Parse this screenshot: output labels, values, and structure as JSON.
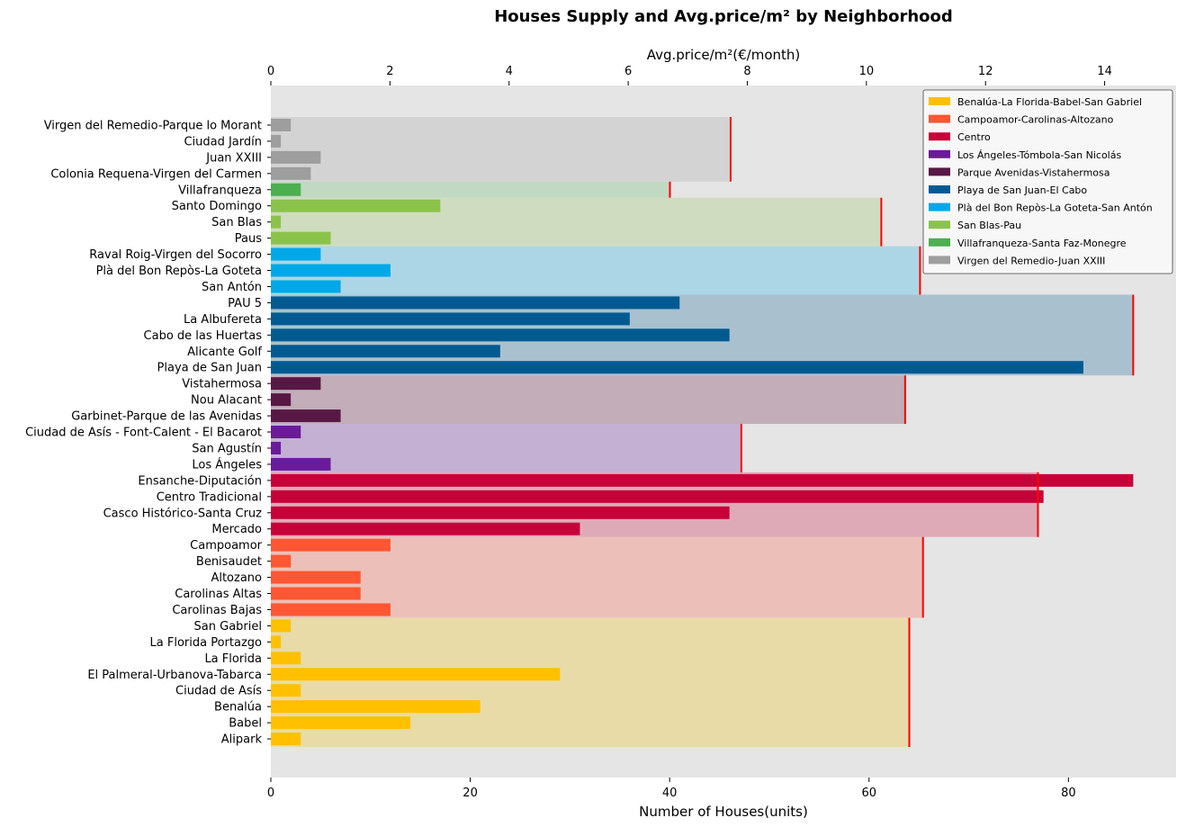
{
  "chart_data": {
    "type": "bar",
    "orientation": "horizontal",
    "title": "Houses Supply and Avg.price/m² by Neighborhood",
    "xlabel": "Number of Houses(units)",
    "x2label": "Avg.price/m²(€/month)",
    "xlim": [
      0,
      90.8
    ],
    "x2lim": [
      0,
      15.2
    ],
    "xticks": [
      0,
      20,
      40,
      60,
      80
    ],
    "x2ticks": [
      0,
      2,
      4,
      6,
      8,
      10,
      12,
      14
    ],
    "background": "#e5e5e5",
    "price_marker_color": "#ff0000",
    "legend_position": "top-right",
    "groups": [
      {
        "name": "Benalúa-La Florida-Babel-San Gabriel",
        "color": "#ffc000",
        "band": "#e8dba8",
        "price": 10.72,
        "items": [
          {
            "label": "Alipark",
            "value": 3
          },
          {
            "label": "Babel",
            "value": 14
          },
          {
            "label": "Benalúa",
            "value": 21
          },
          {
            "label": "Ciudad de Asís",
            "value": 3
          },
          {
            "label": "El Palmeral-Urbanova-Tabarca",
            "value": 29
          },
          {
            "label": "La Florida",
            "value": 3
          },
          {
            "label": "La Florida Portazgo",
            "value": 1
          },
          {
            "label": "San Gabriel",
            "value": 2
          }
        ]
      },
      {
        "name": "Campoamor-Carolinas-Altozano",
        "color": "#ff5733",
        "band": "#ecc0b8",
        "price": 10.95,
        "items": [
          {
            "label": "Carolinas Bajas",
            "value": 12
          },
          {
            "label": "Carolinas Altas",
            "value": 9
          },
          {
            "label": "Altozano",
            "value": 9
          },
          {
            "label": "Benisaudet",
            "value": 2
          },
          {
            "label": "Campoamor",
            "value": 12
          }
        ]
      },
      {
        "name": "Centro",
        "color": "#c70039",
        "band": "#dfaab7",
        "price": 12.88,
        "items": [
          {
            "label": "Mercado",
            "value": 31
          },
          {
            "label": "Casco Histórico-Santa Cruz",
            "value": 46
          },
          {
            "label": "Centro Tradicional",
            "value": 77.5
          },
          {
            "label": "Ensanche-Diputación",
            "value": 86.5
          }
        ]
      },
      {
        "name": "Los Ángeles-Tómbola-San Nicolás",
        "color": "#6a1b9a",
        "band": "#c4b0d3",
        "price": 7.9,
        "items": [
          {
            "label": "Los Ángeles",
            "value": 6
          },
          {
            "label": "San Agustín",
            "value": 1
          },
          {
            "label": "Ciudad de Asís - Font-Calent - El Bacarot",
            "value": 3
          }
        ]
      },
      {
        "name": "Parque Avenidas-Vistahermosa",
        "color": "#581845",
        "band": "#c2adb8",
        "price": 10.65,
        "items": [
          {
            "label": "Garbinet-Parque de las Avenidas",
            "value": 7
          },
          {
            "label": "Nou Alacant",
            "value": 2
          },
          {
            "label": "Vistahermosa",
            "value": 5
          }
        ]
      },
      {
        "name": "Playa de San Juan-El Cabo",
        "color": "#005a92",
        "band": "#a9c0cf",
        "price": 14.48,
        "items": [
          {
            "label": "Playa de San Juan",
            "value": 81.5
          },
          {
            "label": "Alicante Golf",
            "value": 23
          },
          {
            "label": "Cabo de las Huertas",
            "value": 46
          },
          {
            "label": "La Albufereta",
            "value": 36
          },
          {
            "label": "PAU 5",
            "value": 41
          }
        ]
      },
      {
        "name": "Plà del Bon Repòs-La Goteta-San Antón",
        "color": "#00a8e8",
        "band": "#acd6e5",
        "price": 10.9,
        "items": [
          {
            "label": "San Antón",
            "value": 7
          },
          {
            "label": "Plà del Bon Repòs-La Goteta",
            "value": 12
          },
          {
            "label": "Raval Roig-Virgen del Socorro",
            "value": 5
          }
        ]
      },
      {
        "name": "San Blas-Pau",
        "color": "#8bc34a",
        "band": "#cfdcbf",
        "price": 10.25,
        "items": [
          {
            "label": "Paus",
            "value": 6
          },
          {
            "label": "San Blas",
            "value": 1
          },
          {
            "label": "Santo Domingo",
            "value": 17
          }
        ]
      },
      {
        "name": "Villafranqueza-Santa Faz-Monegre",
        "color": "#4caf50",
        "band": "#c1d9c2",
        "price": 6.7,
        "items": [
          {
            "label": "Villafranqueza",
            "value": 3
          }
        ]
      },
      {
        "name": "Virgen del Remedio-Juan XXIII",
        "color": "#9e9e9e",
        "band": "#d3d3d3",
        "price": 7.72,
        "items": [
          {
            "label": "Colonia Requena-Virgen del Carmen",
            "value": 4
          },
          {
            "label": "Juan XXIII",
            "value": 5
          },
          {
            "label": "Ciudad Jardín",
            "value": 1
          },
          {
            "label": "Virgen del Remedio-Parque lo Morant",
            "value": 2
          }
        ]
      }
    ]
  }
}
